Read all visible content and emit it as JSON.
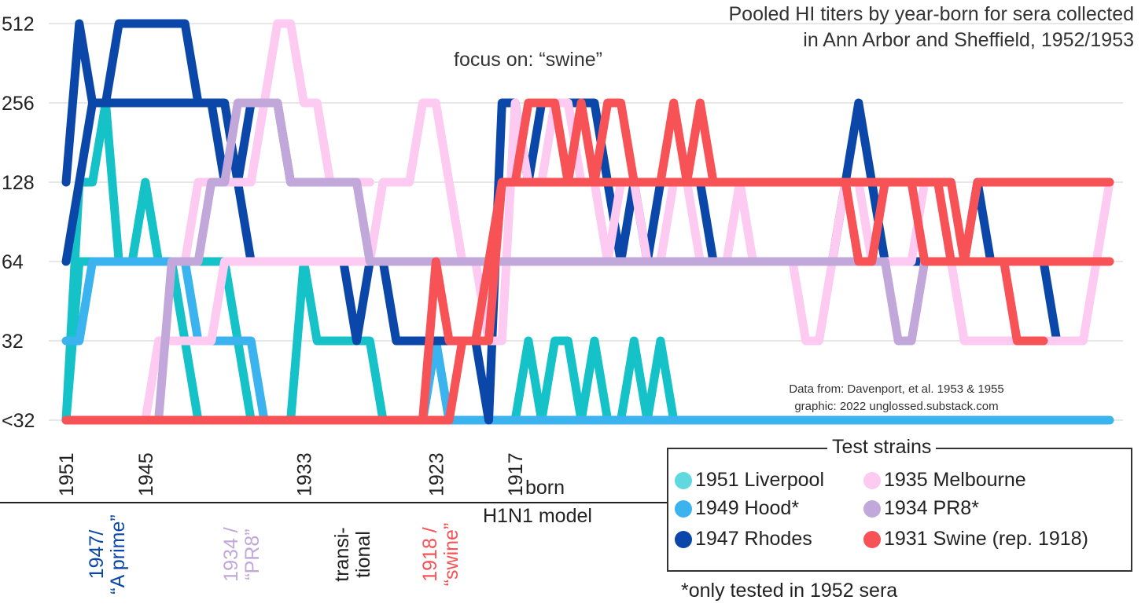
{
  "chart_data": {
    "type": "line",
    "title_lines": [
      "Pooled HI titers by year-born for sera collected",
      "in Ann Arbor and Sheffield, 1952/1953"
    ],
    "subtitle": "focus on: “swine”",
    "xlabel": "born",
    "ylabel": "",
    "y_scale": "log2",
    "y_ticks": [
      "<32",
      "32",
      "64",
      "128",
      "256",
      "512"
    ],
    "y_tick_values": [
      16,
      32,
      64,
      128,
      256,
      512
    ],
    "x_ticks": [
      "1951",
      "1945",
      "1933",
      "1923",
      "1917"
    ],
    "x_tick_values": [
      1951,
      1945,
      1933,
      1923,
      1917
    ],
    "x_range": [
      1951,
      1872
    ],
    "grid": true,
    "series": [
      {
        "name": "1951 Liverpool",
        "color": "#15C2C8",
        "x": [
          1951,
          1950,
          1949,
          1948,
          1947,
          1946,
          1945,
          1944,
          1943,
          1942,
          1941,
          1940,
          1939,
          1938,
          1937,
          1936,
          1935,
          1934,
          1933,
          1932,
          1931,
          1930,
          1929,
          1928,
          1927,
          1926,
          1925,
          1924,
          1923,
          1922,
          1921,
          1920,
          1919,
          1918,
          1917,
          1916,
          1915,
          1914,
          1913,
          1912,
          1911,
          1910,
          1909,
          1908,
          1907,
          1906,
          1905,
          1904,
          1903,
          1902,
          1901,
          1900,
          1899,
          1898,
          1897
        ],
        "y": [
          16,
          128,
          128,
          256,
          64,
          64,
          64,
          64,
          64,
          64,
          64,
          64,
          64,
          32,
          16,
          16,
          16,
          16,
          64,
          32,
          32,
          32,
          32,
          32,
          16,
          16,
          16,
          16,
          32,
          16,
          16,
          16,
          16,
          16,
          16,
          32,
          16,
          32,
          32,
          16,
          32,
          16,
          16,
          32,
          16,
          32,
          16,
          16,
          16,
          16,
          16,
          16,
          16,
          16,
          16
        ]
      },
      {
        "name": "1951 Liverpool (second pool)",
        "color": "#15C2C8",
        "x": [
          1951,
          1950,
          1949,
          1948,
          1947,
          1946,
          1945,
          1944,
          1943,
          1942,
          1941,
          1940,
          1939,
          1938,
          1937,
          1936,
          1935,
          1934
        ],
        "y": [
          16,
          64,
          64,
          64,
          64,
          64,
          128,
          64,
          64,
          32,
          16,
          16,
          16,
          16,
          16,
          16,
          16,
          16
        ]
      },
      {
        "name": "1949 Hood*",
        "color": "#3BB3EE",
        "x": [
          1951,
          1950,
          1949,
          1948,
          1947,
          1946,
          1945,
          1944,
          1943,
          1942,
          1941,
          1940,
          1939,
          1938,
          1937,
          1936,
          1935,
          1934,
          1933,
          1932,
          1931,
          1930,
          1929,
          1928,
          1927,
          1926,
          1925,
          1924,
          1923,
          1922,
          1921,
          1920,
          1919,
          1918,
          1917,
          1900,
          1880,
          1872
        ],
        "y": [
          32,
          32,
          64,
          64,
          64,
          64,
          64,
          64,
          64,
          64,
          32,
          32,
          32,
          32,
          32,
          16,
          16,
          16,
          16,
          16,
          16,
          16,
          16,
          16,
          16,
          16,
          16,
          16,
          32,
          16,
          16,
          16,
          16,
          16,
          16,
          16,
          16,
          16
        ]
      },
      {
        "name": "1947 Rhodes",
        "color": "#0A47A8",
        "x": [
          1951,
          1950,
          1949,
          1948,
          1947,
          1946,
          1945,
          1944,
          1943,
          1942,
          1941,
          1940,
          1939,
          1938,
          1937,
          1936,
          1935,
          1934,
          1933,
          1932,
          1931,
          1930,
          1929,
          1928,
          1927,
          1926,
          1925,
          1924,
          1923,
          1922,
          1921,
          1920,
          1919,
          1918,
          1917,
          1916,
          1915,
          1914,
          1913,
          1912,
          1911,
          1910,
          1909,
          1908,
          1907,
          1906,
          1905,
          1904,
          1903,
          1902,
          1901,
          1900,
          1899,
          1898,
          1897,
          1896,
          1895,
          1894,
          1893,
          1892,
          1891,
          1890,
          1889,
          1888,
          1887,
          1886,
          1885,
          1884,
          1883,
          1882,
          1881,
          1880,
          1879,
          1878,
          1877,
          1876
        ],
        "y": [
          128,
          512,
          256,
          256,
          256,
          256,
          256,
          256,
          256,
          256,
          256,
          256,
          128,
          128,
          64,
          64,
          64,
          64,
          64,
          64,
          64,
          64,
          32,
          64,
          64,
          32,
          32,
          32,
          32,
          32,
          32,
          32,
          16,
          256,
          256,
          128,
          256,
          256,
          256,
          256,
          256,
          128,
          64,
          128,
          64,
          128,
          128,
          128,
          128,
          64,
          64,
          64,
          64,
          64,
          64,
          64,
          64,
          64,
          64,
          128,
          256,
          128,
          64,
          64,
          64,
          64,
          64,
          64,
          64,
          128,
          64,
          64,
          64,
          64,
          64,
          32
        ]
      },
      {
        "name": "1947 Rhodes (second pool)",
        "color": "#0A47A8",
        "x": [
          1951,
          1950,
          1949,
          1948,
          1947,
          1946,
          1945,
          1944,
          1943,
          1942,
          1941,
          1940,
          1939,
          1938,
          1937,
          1936,
          1935,
          1934,
          1933,
          1932,
          1931
        ],
        "y": [
          64,
          128,
          256,
          256,
          512,
          512,
          512,
          512,
          512,
          512,
          256,
          256,
          256,
          128,
          256,
          256,
          256,
          128,
          128,
          128,
          128
        ]
      },
      {
        "name": "1935 Melbourne",
        "color": "#FDCAF2",
        "x": [
          1946,
          1945,
          1944,
          1943,
          1942,
          1941,
          1940,
          1939,
          1938,
          1937,
          1936,
          1935,
          1934,
          1933,
          1932,
          1931,
          1930,
          1929,
          1928,
          1927,
          1926,
          1925,
          1924,
          1923,
          1922,
          1921,
          1920,
          1919,
          1918,
          1917,
          1916,
          1915,
          1914,
          1913,
          1912,
          1911,
          1910,
          1909,
          1908,
          1907,
          1906,
          1905,
          1904,
          1903,
          1902,
          1901,
          1900,
          1899,
          1898,
          1897,
          1896,
          1895,
          1894,
          1893,
          1892,
          1891,
          1890,
          1889,
          1888,
          1887,
          1886,
          1885,
          1884,
          1883,
          1882,
          1881,
          1880,
          1879,
          1878,
          1877,
          1876,
          1875,
          1874,
          1873,
          1872
        ],
        "y": [
          16,
          16,
          32,
          32,
          32,
          32,
          32,
          64,
          64,
          64,
          64,
          64,
          64,
          64,
          64,
          64,
          64,
          64,
          64,
          128,
          128,
          128,
          256,
          256,
          128,
          64,
          64,
          32,
          32,
          256,
          128,
          128,
          256,
          256,
          128,
          128,
          64,
          128,
          128,
          64,
          64,
          128,
          128,
          64,
          64,
          64,
          128,
          64,
          64,
          64,
          64,
          32,
          32,
          64,
          128,
          128,
          64,
          64,
          64,
          64,
          128,
          128,
          64,
          32,
          32,
          32,
          32,
          32,
          32,
          32,
          32,
          32,
          32,
          64,
          128
        ]
      },
      {
        "name": "1935 Melbourne (second pool)",
        "color": "#FDCAF2",
        "x": [
          1942,
          1941,
          1940,
          1939,
          1938,
          1937,
          1936,
          1935,
          1934,
          1933,
          1932,
          1931,
          1930,
          1929,
          1928
        ],
        "y": [
          64,
          128,
          128,
          128,
          128,
          128,
          256,
          512,
          512,
          256,
          256,
          128,
          128,
          128,
          128
        ]
      },
      {
        "name": "1934 PR8*",
        "color": "#C2A8DA",
        "x": [
          1944,
          1943,
          1942,
          1941,
          1940,
          1939,
          1938,
          1937,
          1936,
          1935,
          1934,
          1933,
          1932,
          1931,
          1930,
          1929,
          1928,
          1927,
          1926,
          1925,
          1924,
          1923,
          1922,
          1921,
          1920,
          1919,
          1918,
          1917,
          1916,
          1915,
          1914,
          1913,
          1912,
          1911,
          1910,
          1909,
          1908,
          1907,
          1906,
          1905,
          1904,
          1903,
          1902,
          1901,
          1900,
          1899,
          1898,
          1897,
          1896,
          1895,
          1894,
          1893,
          1892,
          1891,
          1890,
          1889,
          1888,
          1887,
          1886,
          1885
        ],
        "y": [
          16,
          64,
          64,
          64,
          128,
          128,
          256,
          256,
          256,
          256,
          128,
          128,
          128,
          128,
          128,
          128,
          64,
          64,
          64,
          64,
          64,
          64,
          64,
          64,
          64,
          64,
          64,
          64,
          64,
          64,
          64,
          64,
          64,
          64,
          64,
          64,
          64,
          64,
          64,
          64,
          64,
          64,
          64,
          64,
          64,
          64,
          64,
          64,
          64,
          64,
          64,
          64,
          64,
          64,
          64,
          64,
          32,
          32,
          64,
          64
        ]
      },
      {
        "name": "1931 Swine (rep. 1918)",
        "color": "#F75256",
        "x": [
          1951,
          1950,
          1949,
          1948,
          1947,
          1946,
          1945,
          1944,
          1943,
          1942,
          1941,
          1940,
          1939,
          1938,
          1937,
          1936,
          1935,
          1934,
          1933,
          1932,
          1931,
          1930,
          1929,
          1928,
          1927,
          1926,
          1925,
          1924,
          1923,
          1922,
          1921,
          1920,
          1919,
          1918,
          1917,
          1916,
          1915,
          1914,
          1913,
          1912,
          1911,
          1910,
          1909,
          1908,
          1907,
          1906,
          1905,
          1904,
          1903,
          1902,
          1901,
          1900,
          1899,
          1898,
          1897,
          1896,
          1895,
          1894,
          1893,
          1892,
          1891,
          1890,
          1889,
          1888,
          1887,
          1886,
          1885,
          1884,
          1883,
          1882,
          1881,
          1880,
          1879,
          1878,
          1877,
          1876,
          1875,
          1874,
          1873,
          1872
        ],
        "y": [
          16,
          16,
          16,
          16,
          16,
          16,
          16,
          16,
          16,
          16,
          16,
          16,
          16,
          16,
          16,
          16,
          16,
          16,
          16,
          16,
          16,
          16,
          16,
          16,
          16,
          16,
          16,
          16,
          16,
          16,
          32,
          32,
          64,
          128,
          128,
          256,
          256,
          256,
          128,
          256,
          128,
          256,
          256,
          128,
          128,
          128,
          256,
          128,
          256,
          128,
          128,
          128,
          128,
          128,
          128,
          128,
          128,
          128,
          128,
          128,
          128,
          128,
          128,
          128,
          128,
          128,
          128,
          64,
          64,
          128,
          128,
          128,
          128,
          128,
          128,
          128,
          128,
          128,
          128,
          128
        ]
      },
      {
        "name": "1931 Swine (rep. 1918) (second pool)",
        "color": "#F75256",
        "x": [
          1924,
          1923,
          1922,
          1921,
          1920,
          1919,
          1918,
          1917,
          1916,
          1915,
          1914,
          1913,
          1912,
          1911,
          1910,
          1909,
          1908,
          1907,
          1906,
          1905,
          1904,
          1903,
          1902,
          1901,
          1900,
          1899,
          1898,
          1897,
          1896,
          1895,
          1894,
          1893,
          1892,
          1891,
          1890,
          1889,
          1888,
          1887,
          1886,
          1885,
          1884,
          1883,
          1882,
          1881,
          1880,
          1879,
          1878,
          1877,
          1876,
          1875,
          1874,
          1873,
          1872
        ],
        "y": [
          16,
          64,
          32,
          32,
          32,
          32,
          128,
          128,
          128,
          128,
          128,
          128,
          128,
          128,
          128,
          128,
          128,
          128,
          128,
          128,
          128,
          128,
          128,
          128,
          128,
          128,
          128,
          128,
          128,
          128,
          128,
          128,
          128,
          64,
          64,
          128,
          128,
          128,
          128,
          128,
          128,
          64,
          64,
          64,
          64,
          64,
          64,
          64,
          64,
          64,
          64,
          64,
          64
        ]
      },
      {
        "name": "1931 Swine (rep. 1918) (third pool)",
        "color": "#F75256",
        "x": [
          1901,
          1900,
          1899,
          1898,
          1897,
          1896,
          1895,
          1894,
          1893,
          1892,
          1891,
          1890,
          1889,
          1888,
          1887,
          1886,
          1885,
          1884,
          1883,
          1882,
          1881,
          1880,
          1879,
          1878,
          1877
        ],
        "y": [
          128,
          128,
          128,
          128,
          128,
          128,
          128,
          128,
          128,
          128,
          128,
          128,
          128,
          128,
          128,
          64,
          64,
          64,
          64,
          64,
          64,
          64,
          32,
          32,
          32
        ]
      }
    ],
    "legend": {
      "title": "Test strains",
      "placement": "bottom-right",
      "items": [
        {
          "label": "1951 Liverpool",
          "color": "#5FD8E0"
        },
        {
          "label": "1935 Melbourne",
          "color": "#FDCAF2"
        },
        {
          "label": "1949 Hood*",
          "color": "#3BB3EE"
        },
        {
          "label": "1934 PR8*",
          "color": "#C2A8DA"
        },
        {
          "label": "1947 Rhodes",
          "color": "#0A47A8"
        },
        {
          "label": "1931 Swine (rep. 1918)",
          "color": "#F75256"
        }
      ]
    },
    "annotations": {
      "credit_1": "Data from: Davenport, et al. 1953 & 1955",
      "credit_2": "graphic: 2022 unglossed.substack.com",
      "footnote": "*only tested in 1952 sera",
      "model_label": "H1N1 model",
      "model_groups": [
        {
          "lines": [
            "1947/",
            "“A prime”"
          ],
          "color": "#0A47A8"
        },
        {
          "lines": [
            "1934 /",
            "“PR8”"
          ],
          "color": "#C2A8DA"
        },
        {
          "lines": [
            "transi-",
            "tional"
          ],
          "color": "#222222"
        },
        {
          "lines": [
            "1918 /",
            "“swine”"
          ],
          "color": "#F75256"
        }
      ]
    }
  }
}
